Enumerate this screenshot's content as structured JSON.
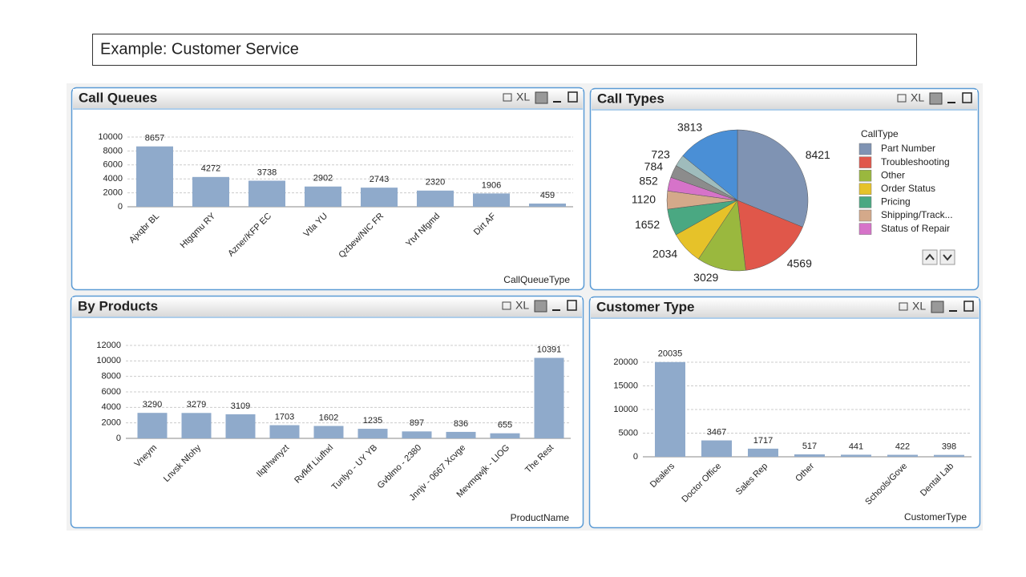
{
  "title": "Example:  Customer Service",
  "toolbar_label": "XL",
  "chart_data": [
    {
      "type": "bar",
      "title": "Call Queues",
      "x_label": "CallQueueType",
      "color": "#8faacb",
      "categories": [
        "Ajxqbr BL",
        "Htgqmu RY",
        "Azner/KFP EC",
        "Vtla YU",
        "Qzbew/NIC FR",
        "Ytvf Nfgmd",
        "Dirt AF",
        null
      ],
      "values": [
        8657,
        4272,
        3738,
        2902,
        2743,
        2320,
        1906,
        459
      ],
      "ylim": [
        0,
        10000
      ],
      "yticks": [
        0,
        2000,
        4000,
        6000,
        8000,
        10000
      ],
      "grid": true
    },
    {
      "type": "pie",
      "title": "Call Types",
      "legend_title": "CallType",
      "legend": "right",
      "categories": [
        "Part Number",
        "Troubleshooting",
        "Other",
        "Order Status",
        "Pricing",
        "Shipping/Track...",
        "Status of Repair",
        null,
        null,
        null
      ],
      "values": [
        8421,
        4569,
        3029,
        2034,
        1652,
        1120,
        852,
        784,
        723,
        3813
      ],
      "colors": [
        "#7f93b3",
        "#e0574a",
        "#9ab83e",
        "#e6c229",
        "#4aa882",
        "#d4a98a",
        "#d673c9",
        "#8c8c8c",
        "#9fbcbc",
        "#4a8fd6"
      ]
    },
    {
      "type": "bar",
      "title": "By Products",
      "x_label": "ProductName",
      "color": "#8faacb",
      "categories": [
        "Vneym",
        "Lnvsk Nfohy",
        null,
        "Ilqhhwnyzt",
        "Rvfkff Liufhxl",
        "Tunlyo - UY YB",
        "Gvblmo - 2380",
        "Jnnjv - 0667 Xcvge",
        "Mevmqwjk - LIOG",
        "The Rest"
      ],
      "values": [
        3290,
        3279,
        3109,
        1703,
        1602,
        1235,
        897,
        836,
        655,
        10391
      ],
      "ylim": [
        0,
        12000
      ],
      "yticks": [
        0,
        2000,
        4000,
        6000,
        8000,
        10000,
        12000
      ],
      "grid": true
    },
    {
      "type": "bar",
      "title": "Customer Type",
      "x_label": "CustomerType",
      "color": "#8faacb",
      "categories": [
        "Dealers",
        "Doctor Office",
        "Sales Rep",
        "Other",
        null,
        "Schools/Gove",
        "Dental Lab"
      ],
      "values": [
        20035,
        3467,
        1717,
        517,
        441,
        422,
        398
      ],
      "ylim": [
        0,
        20000
      ],
      "yticks": [
        0,
        5000,
        10000,
        15000,
        20000
      ],
      "grid": true
    }
  ]
}
